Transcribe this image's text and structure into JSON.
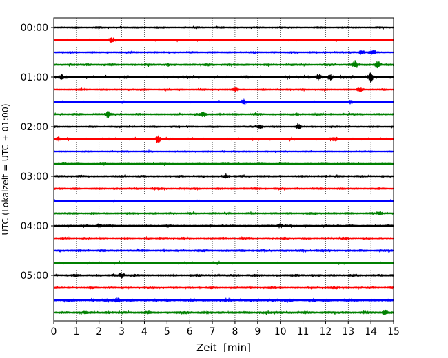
{
  "chart_data": {
    "type": "line",
    "title": "",
    "xlabel": "Zeit  [min]",
    "ylabel": "UTC (Lokalzeit = UTC + 01:00)",
    "xlim": [
      0,
      15
    ],
    "x_ticks": [
      "0",
      "1",
      "2",
      "3",
      "4",
      "5",
      "6",
      "7",
      "8",
      "9",
      "10",
      "11",
      "12",
      "13",
      "14",
      "15"
    ],
    "y_ticks": [
      "00:00",
      "01:00",
      "02:00",
      "03:00",
      "04:00",
      "05:00"
    ],
    "grid": "vertical dotted at each minute",
    "trace_interval_min": 15,
    "trace_colors": [
      "#000000",
      "#ff0000",
      "#0000ff",
      "#008000"
    ],
    "series": [
      {
        "label": "00:00",
        "color": "#000000",
        "amplitude": 0.35
      },
      {
        "label": "00:15",
        "color": "#ff0000",
        "amplitude": 0.4,
        "events": [
          {
            "x": 2.55,
            "amp": 0.6
          }
        ]
      },
      {
        "label": "00:30",
        "color": "#0000ff",
        "amplitude": 0.35,
        "events": [
          {
            "x": 13.6,
            "amp": 0.7
          },
          {
            "x": 14.1,
            "amp": 0.6
          }
        ]
      },
      {
        "label": "00:45",
        "color": "#008000",
        "amplitude": 0.45,
        "events": [
          {
            "x": 13.3,
            "amp": 1.1
          },
          {
            "x": 14.3,
            "amp": 1.3
          }
        ]
      },
      {
        "label": "01:00",
        "color": "#000000",
        "amplitude": 0.5,
        "events": [
          {
            "x": 0.3,
            "amp": 0.7
          },
          {
            "x": 11.7,
            "amp": 0.9
          },
          {
            "x": 12.2,
            "amp": 0.8
          },
          {
            "x": 14.0,
            "amp": 1.4
          }
        ]
      },
      {
        "label": "01:15",
        "color": "#ff0000",
        "amplitude": 0.35,
        "events": [
          {
            "x": 8.0,
            "amp": 0.6
          },
          {
            "x": 13.5,
            "amp": 0.6
          }
        ]
      },
      {
        "label": "01:30",
        "color": "#0000ff",
        "amplitude": 0.35,
        "events": [
          {
            "x": 8.4,
            "amp": 0.8
          },
          {
            "x": 13.1,
            "amp": 0.6
          }
        ]
      },
      {
        "label": "01:45",
        "color": "#008000",
        "amplitude": 0.4,
        "events": [
          {
            "x": 2.4,
            "amp": 0.9
          },
          {
            "x": 6.6,
            "amp": 0.7
          }
        ]
      },
      {
        "label": "02:00",
        "color": "#000000",
        "amplitude": 0.35,
        "events": [
          {
            "x": 9.1,
            "amp": 0.6
          },
          {
            "x": 10.8,
            "amp": 0.9
          }
        ]
      },
      {
        "label": "02:15",
        "color": "#ff0000",
        "amplitude": 0.45,
        "events": [
          {
            "x": 0.2,
            "amp": 0.7
          },
          {
            "x": 4.6,
            "amp": 1.3
          },
          {
            "x": 12.4,
            "amp": 0.8
          }
        ]
      },
      {
        "label": "02:30",
        "color": "#0000ff",
        "amplitude": 0.3
      },
      {
        "label": "02:45",
        "color": "#008000",
        "amplitude": 0.35
      },
      {
        "label": "03:00",
        "color": "#000000",
        "amplitude": 0.4,
        "events": [
          {
            "x": 7.6,
            "amp": 0.7
          }
        ]
      },
      {
        "label": "03:15",
        "color": "#ff0000",
        "amplitude": 0.4
      },
      {
        "label": "03:30",
        "color": "#0000ff",
        "amplitude": 0.35
      },
      {
        "label": "03:45",
        "color": "#008000",
        "amplitude": 0.4,
        "events": [
          {
            "x": 14.4,
            "amp": 0.5
          }
        ]
      },
      {
        "label": "04:00",
        "color": "#000000",
        "amplitude": 0.4,
        "events": [
          {
            "x": 2.0,
            "amp": 0.6
          },
          {
            "x": 10.0,
            "amp": 0.6
          }
        ]
      },
      {
        "label": "04:15",
        "color": "#ff0000",
        "amplitude": 0.45
      },
      {
        "label": "04:30",
        "color": "#0000ff",
        "amplitude": 0.45
      },
      {
        "label": "04:45",
        "color": "#008000",
        "amplitude": 0.4
      },
      {
        "label": "05:00",
        "color": "#000000",
        "amplitude": 0.45,
        "events": [
          {
            "x": 3.0,
            "amp": 0.7
          }
        ]
      },
      {
        "label": "05:15",
        "color": "#ff0000",
        "amplitude": 0.45
      },
      {
        "label": "05:30",
        "color": "#0000ff",
        "amplitude": 0.5,
        "events": [
          {
            "x": 2.8,
            "amp": 0.8
          }
        ]
      },
      {
        "label": "05:45",
        "color": "#008000",
        "amplitude": 0.5,
        "events": [
          {
            "x": 14.6,
            "amp": 0.6
          }
        ]
      }
    ]
  }
}
